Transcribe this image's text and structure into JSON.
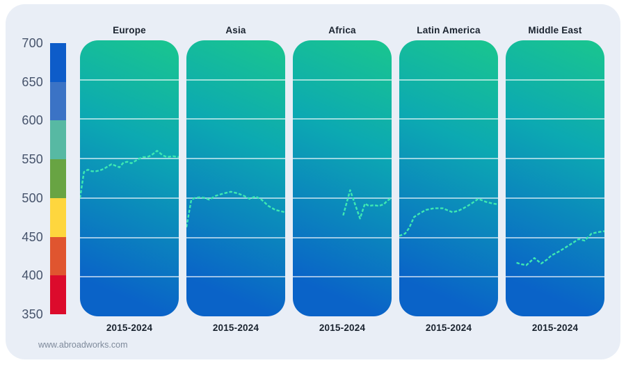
{
  "page": {
    "footer": "www.abroadworks.com"
  },
  "chart_data": {
    "type": "line",
    "title": "",
    "layout": "small-multiples",
    "x_range_label": "2015-2024",
    "value_range": [
      350,
      700
    ],
    "y_ticks": [
      700,
      650,
      600,
      550,
      500,
      450,
      400,
      350
    ],
    "gridline_values": [
      650,
      600,
      550,
      500,
      450,
      400
    ],
    "line_color": "#3ee9b2",
    "panel_gradient": [
      "#1ac68e",
      "#0ca9b2",
      "#0a63c8"
    ],
    "legend": {
      "position": "left",
      "bands": [
        {
          "from": 650,
          "to": 700,
          "color": "#0d5cc9"
        },
        {
          "from": 600,
          "to": 650,
          "color": "#3b73c5"
        },
        {
          "from": 550,
          "to": 600,
          "color": "#57b9a3"
        },
        {
          "from": 500,
          "to": 550,
          "color": "#68a443"
        },
        {
          "from": 450,
          "to": 500,
          "color": "#fed63e"
        },
        {
          "from": 400,
          "to": 450,
          "color": "#e0552f"
        },
        {
          "from": 350,
          "to": 400,
          "color": "#dc0b2c"
        }
      ]
    },
    "panels": [
      {
        "label": "Europe",
        "x_label": "2015-2024",
        "points": [
          [
            0,
            500
          ],
          [
            0.04,
            533
          ],
          [
            0.08,
            536
          ],
          [
            0.12,
            534
          ],
          [
            0.16,
            534
          ],
          [
            0.2,
            535
          ],
          [
            0.24,
            537
          ],
          [
            0.28,
            540
          ],
          [
            0.32,
            543
          ],
          [
            0.36,
            541
          ],
          [
            0.4,
            539
          ],
          [
            0.44,
            545
          ],
          [
            0.48,
            546
          ],
          [
            0.52,
            544
          ],
          [
            0.56,
            547
          ],
          [
            0.6,
            550
          ],
          [
            0.64,
            552
          ],
          [
            0.68,
            552
          ],
          [
            0.72,
            554
          ],
          [
            0.78,
            560
          ],
          [
            0.84,
            554
          ],
          [
            0.88,
            552
          ],
          [
            0.94,
            553
          ],
          [
            1,
            552
          ]
        ]
      },
      {
        "label": "Asia",
        "x_label": "2015-2024",
        "points": [
          [
            0,
            463
          ],
          [
            0.05,
            498
          ],
          [
            0.08,
            500
          ],
          [
            0.14,
            501
          ],
          [
            0.19,
            500
          ],
          [
            0.23,
            498
          ],
          [
            0.3,
            503
          ],
          [
            0.38,
            506
          ],
          [
            0.45,
            508
          ],
          [
            0.52,
            506
          ],
          [
            0.58,
            503
          ],
          [
            0.64,
            499
          ],
          [
            0.7,
            502
          ],
          [
            0.76,
            498
          ],
          [
            0.83,
            490
          ],
          [
            0.9,
            485
          ],
          [
            1,
            482
          ]
        ]
      },
      {
        "label": "Africa",
        "x_label": "2015-2024",
        "points": [
          [
            0.51,
            478
          ],
          [
            0.58,
            510
          ],
          [
            0.68,
            474
          ],
          [
            0.73,
            493
          ],
          [
            0.77,
            490
          ],
          [
            0.82,
            491
          ],
          [
            0.87,
            490
          ],
          [
            0.92,
            492
          ],
          [
            0.96,
            497
          ],
          [
            1,
            500
          ]
        ]
      },
      {
        "label": "Latin America",
        "x_label": "2015-2024",
        "points": [
          [
            0,
            452
          ],
          [
            0.06,
            455
          ],
          [
            0.1,
            462
          ],
          [
            0.15,
            476
          ],
          [
            0.2,
            480
          ],
          [
            0.27,
            485
          ],
          [
            0.35,
            487
          ],
          [
            0.44,
            487
          ],
          [
            0.54,
            482
          ],
          [
            0.6,
            484
          ],
          [
            0.65,
            487
          ],
          [
            0.72,
            492
          ],
          [
            0.8,
            499
          ],
          [
            0.88,
            495
          ],
          [
            0.95,
            493
          ],
          [
            1,
            492
          ]
        ]
      },
      {
        "label": "Middle East",
        "x_label": "2015-2024",
        "points": [
          [
            0.11,
            418
          ],
          [
            0.16,
            416
          ],
          [
            0.21,
            415
          ],
          [
            0.29,
            424
          ],
          [
            0.36,
            417
          ],
          [
            0.42,
            422
          ],
          [
            0.46,
            427
          ],
          [
            0.55,
            433
          ],
          [
            0.64,
            440
          ],
          [
            0.74,
            448
          ],
          [
            0.8,
            446
          ],
          [
            0.87,
            455
          ],
          [
            0.95,
            457
          ],
          [
            1,
            458
          ]
        ]
      }
    ]
  }
}
